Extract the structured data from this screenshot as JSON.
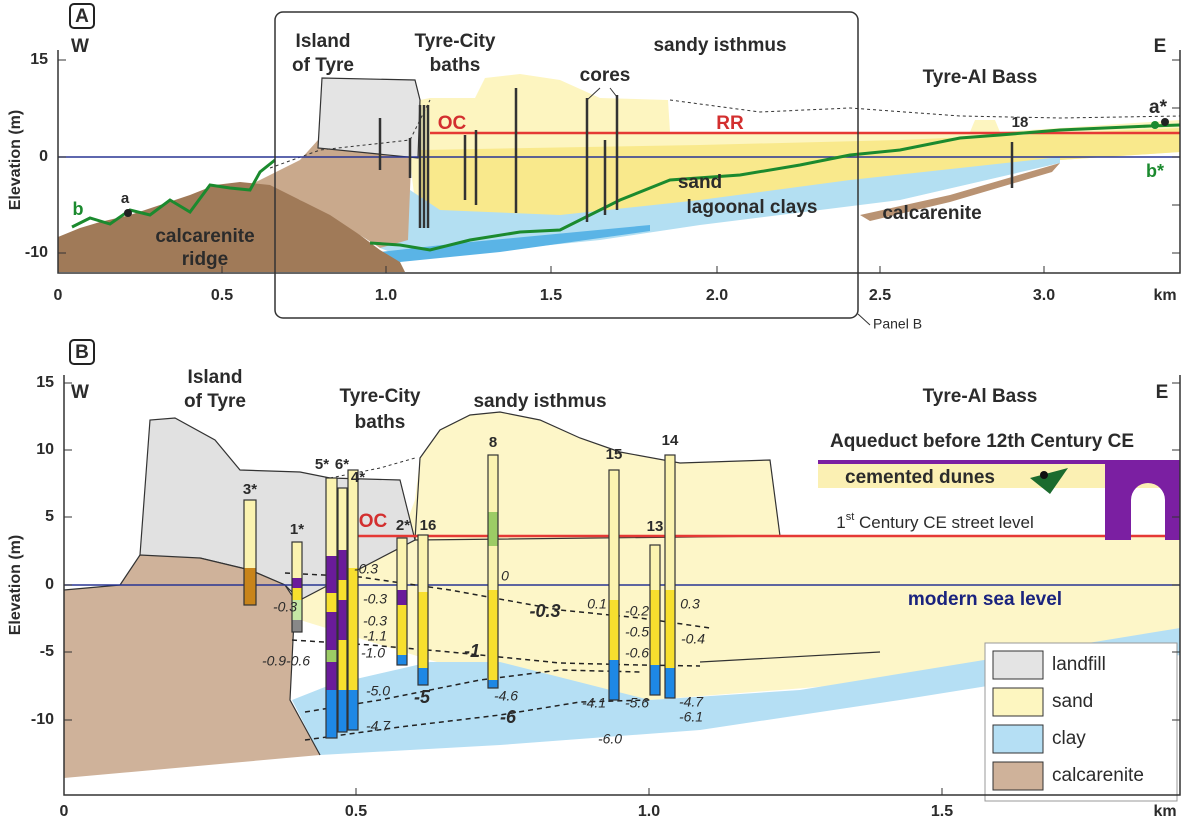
{
  "panel_a": {
    "badge": "A",
    "west": "W",
    "east": "E",
    "y_label": "Elevation (m)",
    "y_ticks": [
      "15",
      "0",
      "-10"
    ],
    "x_ticks": [
      "0",
      "0.5",
      "1.0",
      "1.5",
      "2.0",
      "2.5",
      "3.0"
    ],
    "x_unit": "km",
    "island": [
      "Island",
      "of Tyre"
    ],
    "baths": [
      "Tyre-City",
      "baths"
    ],
    "isthmus": "sandy isthmus",
    "cores": "cores",
    "al_bass": "Tyre-Al Bass",
    "oc": "OC",
    "rr": "RR",
    "core_18": "18",
    "a_star": "a*",
    "b_star": "b*",
    "b": "b",
    "a": "a",
    "sand": "sand",
    "lagoonal_clays": "lagoonal clays",
    "calcarenite": "calcarenite",
    "ridge": [
      "calcarenite",
      "ridge"
    ],
    "box_label": "Panel B"
  },
  "panel_b": {
    "badge": "B",
    "west": "W",
    "east": "E",
    "y_label": "Elevation (m)",
    "y_ticks": [
      "15",
      "10",
      "5",
      "0",
      "-5",
      "-10"
    ],
    "x_ticks": [
      "0",
      "0.5",
      "1.0",
      "1.5"
    ],
    "x_unit": "km",
    "island": [
      "Island",
      "of Tyre"
    ],
    "baths": [
      "Tyre-City",
      "baths"
    ],
    "isthmus": "sandy isthmus",
    "al_bass": "Tyre-Al Bass",
    "aqueduct": "Aqueduct before 12th Century CE",
    "dunes": "cemented dunes",
    "street_level": {
      "number": "1",
      "suffix": "st",
      "text": "Century CE street level"
    },
    "oc": "OC",
    "sea_level": "modern sea level",
    "cores": [
      "3*",
      "1*",
      "5*",
      "6*",
      "4*",
      "2*",
      "16",
      "8",
      "15",
      "13",
      "14"
    ],
    "core_values": [
      "-0.3",
      "-0.3",
      "-0.3",
      "-1.1",
      "-1.0",
      "-5.0",
      "-4.7",
      "-0.3",
      "-0.9",
      "-0.6",
      "0",
      "-4.6",
      "0.1",
      "-0.2",
      "-0.5",
      "-0.6",
      "-4.1",
      "-5.6",
      "-6.0",
      "0.3",
      "-0.4",
      "-4.7",
      "-6.1"
    ],
    "contours": [
      "-0.3",
      "-1",
      "-5",
      "-6"
    ],
    "legend": [
      "landfill",
      "sand",
      "clay",
      "calcarenite"
    ]
  }
}
